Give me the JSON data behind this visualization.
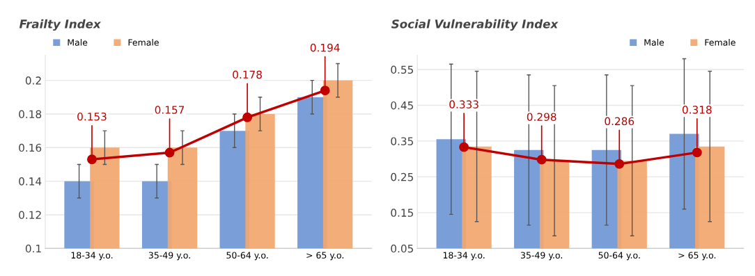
{
  "chart_data": [
    {
      "type": "bar",
      "title": "Frailty Index",
      "categories": [
        "18-34 y.o.",
        "35-49 y.o.",
        "50-64 y.o.",
        "> 65 y.o."
      ],
      "series": [
        {
          "name": "Male",
          "color": "#7a9fd8",
          "values": [
            0.14,
            0.14,
            0.17,
            0.19
          ],
          "errors": [
            0.01,
            0.01,
            0.01,
            0.01
          ]
        },
        {
          "name": "Female",
          "color": "#f2a66e",
          "values": [
            0.16,
            0.16,
            0.18,
            0.2
          ],
          "errors": [
            0.01,
            0.01,
            0.01,
            0.01
          ]
        },
        {
          "type": "line",
          "color": "#c00000",
          "values": [
            0.153,
            0.157,
            0.178,
            0.194
          ],
          "value_labels": [
            "0.153",
            "0.157",
            "0.178",
            "0.194"
          ],
          "marker": "circle"
        }
      ],
      "ylim": [
        0.1,
        0.215
      ],
      "yticks": [
        {
          "value": 0.1,
          "label": "0.1"
        },
        {
          "value": 0.12,
          "label": "0.12"
        },
        {
          "value": 0.14,
          "label": "0.14"
        },
        {
          "value": 0.16,
          "label": "0.16"
        },
        {
          "value": 0.18,
          "label": "0.18"
        },
        {
          "value": 0.2,
          "label": "0.2"
        }
      ],
      "grid": "y",
      "legend": "top left"
    },
    {
      "type": "bar",
      "title": "Social Vulnerability Index",
      "categories": [
        "18-34 y.o.",
        "35-49 y.o.",
        "50-64 y.o.",
        "> 65 y.o."
      ],
      "series": [
        {
          "name": "Male",
          "color": "#7a9fd8",
          "values": [
            0.355,
            0.325,
            0.325,
            0.37
          ],
          "errors": [
            0.21,
            0.21,
            0.21,
            0.21
          ]
        },
        {
          "name": "Female",
          "color": "#f2a66e",
          "values": [
            0.335,
            0.295,
            0.295,
            0.335
          ],
          "errors": [
            0.21,
            0.21,
            0.21,
            0.21
          ]
        },
        {
          "type": "line",
          "color": "#c00000",
          "values": [
            0.333,
            0.298,
            0.286,
            0.318
          ],
          "value_labels": [
            "0.333",
            "0.298",
            "0.286",
            "0.318"
          ],
          "marker": "circle"
        }
      ],
      "ylim": [
        0.05,
        0.59
      ],
      "yticks": [
        0.05,
        0.15,
        0.25,
        0.35,
        0.45,
        0.55
      ],
      "grid": "y",
      "legend": "top right"
    }
  ]
}
